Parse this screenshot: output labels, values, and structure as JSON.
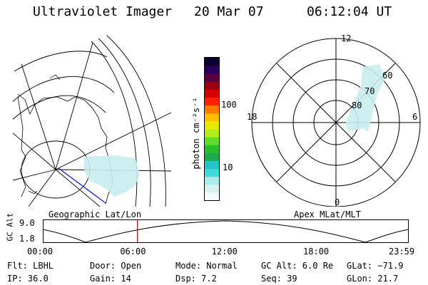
{
  "header": {
    "instrument": "Ultraviolet Imager",
    "date": "20 Mar 07",
    "time": "06:12:04 UT"
  },
  "colorbar": {
    "unit_label": "photon cm⁻²s⁻¹",
    "tick_100": "100",
    "tick_10": "10",
    "colors": [
      "#f4fbfb",
      "#d8f2f2",
      "#a8ecec",
      "#3fd9d9",
      "#22c4c4",
      "#1faa50",
      "#28c028",
      "#5ede2a",
      "#b4ee1a",
      "#e8e800",
      "#ffbf00",
      "#ff7a00",
      "#ff2000",
      "#d20000",
      "#9a0010",
      "#5a0040",
      "#2a0060",
      "#0a0030"
    ]
  },
  "map_labels": {
    "geographic": "Geographic Lat/Lon",
    "apex": "Apex MLat/MLT"
  },
  "polar": {
    "mlt_12": "12",
    "mlt_18": "18",
    "mlt_6": "6",
    "mlt_0": "0",
    "lat_60": "60",
    "lat_70": "70",
    "lat_80": "80"
  },
  "orbit": {
    "axis_label": "GC Alt",
    "y_max": "9.0",
    "y_min": "1.8",
    "ticks": [
      "00:00",
      "06:00",
      "12:00",
      "18:00",
      "23:59"
    ],
    "marker_time": "06:12"
  },
  "info": {
    "flt": "Flt: LBHL",
    "ip": "IP: 36.0",
    "door": "Door: Open",
    "gain": "Gain: 14",
    "mode": "Mode: Normal",
    "dsp": "Dsp:   7.2",
    "gcalt": "GC Alt: 6.0 Re",
    "seq": "Seq: 39",
    "glat": "GLat: −71.9",
    "glon": "GLon:  21.7"
  }
}
